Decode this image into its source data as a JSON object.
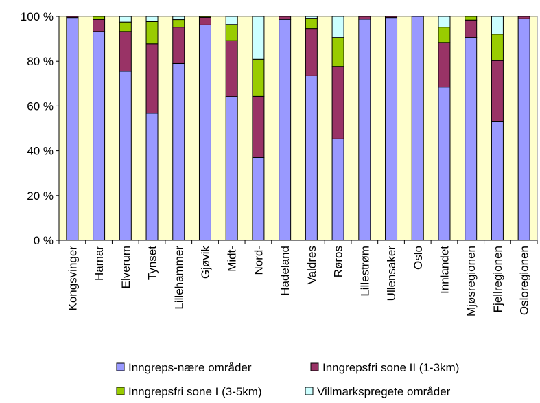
{
  "chart_data": {
    "type": "bar",
    "stacked": true,
    "percent": true,
    "categories": [
      "Kongsvinger",
      "Hamar",
      "Elverum",
      "Tynset",
      "Lillehammer",
      "Gjøvik",
      "Midt-",
      "Nord-",
      "Hadeland",
      "Valdres",
      "Røros",
      "Lillestrøm",
      "Ullensaker",
      "Oslo",
      "Innlandet",
      "Mjøsregionen",
      "Fjellregionen",
      "Osloregionen"
    ],
    "series": [
      {
        "name": "Inngreps-nære områder",
        "color": "#9999ff",
        "values": [
          99.5,
          93.3,
          75.5,
          56.8,
          79.0,
          96.2,
          64.2,
          37.0,
          98.7,
          73.5,
          45.3,
          98.8,
          99.5,
          100,
          68.5,
          90.6,
          53.2,
          99.0
        ]
      },
      {
        "name": "Inngrepsfri sone II (1-3km)",
        "color": "#993366",
        "values": [
          0.5,
          5.4,
          17.8,
          31.0,
          16.2,
          3.4,
          25.0,
          27.3,
          1.3,
          21.1,
          32.4,
          1.2,
          0.5,
          0,
          19.9,
          7.8,
          27.1,
          1.0
        ]
      },
      {
        "name": "Inngrepsfri sone I (3-5km)",
        "color": "#99cc00",
        "values": [
          0,
          1.3,
          4.2,
          9.9,
          3.4,
          0.4,
          7.2,
          16.6,
          0,
          4.6,
          12.9,
          0,
          0,
          0,
          6.8,
          1.6,
          11.8,
          0
        ]
      },
      {
        "name": "Villmarkspregete områder",
        "color": "#ccffff",
        "values": [
          0,
          0,
          2.5,
          2.3,
          1.4,
          0,
          3.6,
          19.1,
          0,
          0.8,
          9.4,
          0,
          0,
          0,
          4.8,
          0,
          7.9,
          0
        ]
      }
    ],
    "y_ticks": [
      "0 %",
      "20 %",
      "40 %",
      "60 %",
      "80 %",
      "100 %"
    ],
    "ylim": [
      0,
      100
    ],
    "plot_background": "#ffffcc",
    "legend_position": "bottom",
    "grid": false
  }
}
